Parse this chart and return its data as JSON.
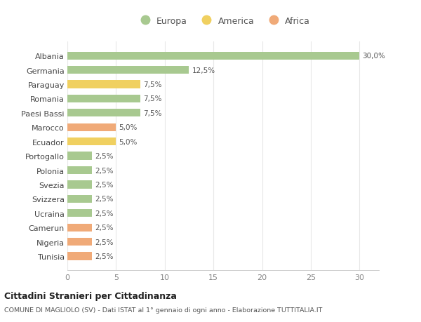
{
  "countries": [
    "Albania",
    "Germania",
    "Paraguay",
    "Romania",
    "Paesi Bassi",
    "Marocco",
    "Ecuador",
    "Portogallo",
    "Polonia",
    "Svezia",
    "Svizzera",
    "Ucraina",
    "Camerun",
    "Nigeria",
    "Tunisia"
  ],
  "values": [
    30.0,
    12.5,
    7.5,
    7.5,
    7.5,
    5.0,
    5.0,
    2.5,
    2.5,
    2.5,
    2.5,
    2.5,
    2.5,
    2.5,
    2.5
  ],
  "labels": [
    "30,0%",
    "12,5%",
    "7,5%",
    "7,5%",
    "7,5%",
    "5,0%",
    "5,0%",
    "2,5%",
    "2,5%",
    "2,5%",
    "2,5%",
    "2,5%",
    "2,5%",
    "2,5%",
    "2,5%"
  ],
  "continents": [
    "Europa",
    "Europa",
    "America",
    "Europa",
    "Europa",
    "Africa",
    "America",
    "Europa",
    "Europa",
    "Europa",
    "Europa",
    "Europa",
    "Africa",
    "Africa",
    "Africa"
  ],
  "colors": {
    "Europa": "#a8c990",
    "America": "#f0d060",
    "Africa": "#f0aa78"
  },
  "xlim": [
    0,
    32
  ],
  "xticks": [
    0,
    5,
    10,
    15,
    20,
    25,
    30
  ],
  "title": "Cittadini Stranieri per Cittadinanza",
  "subtitle": "COMUNE DI MAGLIOLO (SV) - Dati ISTAT al 1° gennaio di ogni anno - Elaborazione TUTTITALIA.IT",
  "bg_color": "#ffffff",
  "grid_color": "#e8e8e8",
  "bar_height": 0.55
}
